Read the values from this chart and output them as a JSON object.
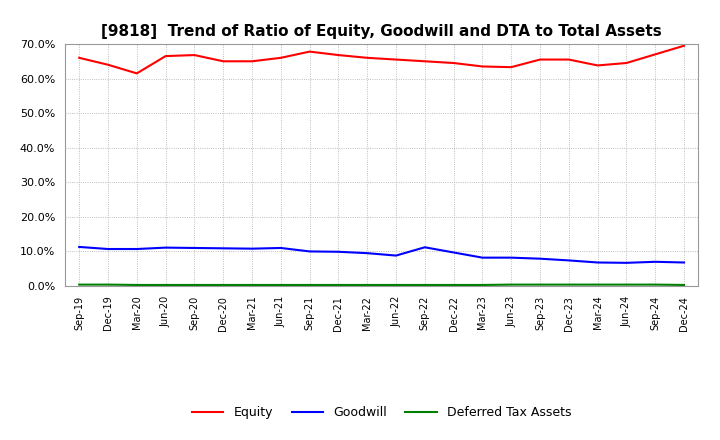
{
  "title": "[9818]  Trend of Ratio of Equity, Goodwill and DTA to Total Assets",
  "labels": [
    "Sep-19",
    "Dec-19",
    "Mar-20",
    "Jun-20",
    "Sep-20",
    "Dec-20",
    "Mar-21",
    "Jun-21",
    "Sep-21",
    "Dec-21",
    "Mar-22",
    "Jun-22",
    "Sep-22",
    "Dec-22",
    "Mar-23",
    "Jun-23",
    "Sep-23",
    "Dec-23",
    "Mar-24",
    "Jun-24",
    "Sep-24",
    "Dec-24"
  ],
  "equity": [
    0.66,
    0.64,
    0.615,
    0.665,
    0.668,
    0.65,
    0.65,
    0.66,
    0.678,
    0.668,
    0.66,
    0.655,
    0.65,
    0.645,
    0.635,
    0.633,
    0.655,
    0.655,
    0.638,
    0.645,
    0.67,
    0.695
  ],
  "goodwill": [
    0.113,
    0.107,
    0.107,
    0.111,
    0.11,
    0.109,
    0.108,
    0.11,
    0.1,
    0.099,
    0.095,
    0.088,
    0.112,
    0.097,
    0.082,
    0.082,
    0.079,
    0.074,
    0.068,
    0.067,
    0.07,
    0.068
  ],
  "dta": [
    0.004,
    0.004,
    0.003,
    0.003,
    0.003,
    0.003,
    0.003,
    0.003,
    0.003,
    0.003,
    0.003,
    0.003,
    0.003,
    0.003,
    0.003,
    0.004,
    0.004,
    0.004,
    0.004,
    0.004,
    0.004,
    0.003
  ],
  "equity_color": "#ff0000",
  "goodwill_color": "#0000ff",
  "dta_color": "#008000",
  "ylim": [
    0.0,
    0.7
  ],
  "yticks": [
    0.0,
    0.1,
    0.2,
    0.3,
    0.4,
    0.5,
    0.6,
    0.7
  ],
  "background_color": "#ffffff",
  "plot_bg_color": "#ffffff",
  "grid_color": "#aaaaaa",
  "title_fontsize": 11,
  "legend_labels": [
    "Equity",
    "Goodwill",
    "Deferred Tax Assets"
  ]
}
